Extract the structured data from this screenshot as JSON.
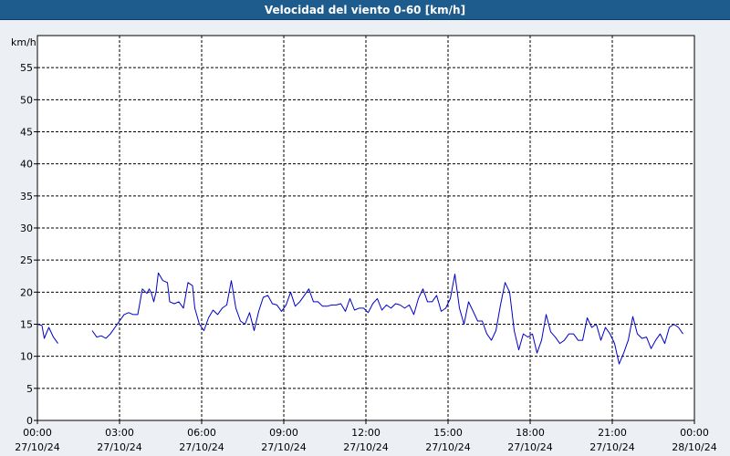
{
  "title": "Velocidad del viento 0-60 [km/h]",
  "colors": {
    "title_bg": "#1D5C8C",
    "plot_bg": "#FFFFFF",
    "page_bg": "#ECEFF3",
    "series": "#0000C8",
    "grid": "#000000"
  },
  "chart_data": {
    "type": "line",
    "title": "Velocidad del viento 0-60 [km/h]",
    "ylabel": "km/h",
    "xlabel": "",
    "ylim": [
      0,
      60
    ],
    "yticks": [
      0,
      5,
      10,
      15,
      20,
      25,
      30,
      35,
      40,
      45,
      50,
      55
    ],
    "xlim": [
      "00:00",
      "24:00"
    ],
    "xticks": [
      {
        "time": "00:00",
        "date": "27/10/24"
      },
      {
        "time": "03:00",
        "date": "27/10/24"
      },
      {
        "time": "06:00",
        "date": "27/10/24"
      },
      {
        "time": "09:00",
        "date": "27/10/24"
      },
      {
        "time": "12:00",
        "date": "27/10/24"
      },
      {
        "time": "15:00",
        "date": "27/10/24"
      },
      {
        "time": "18:00",
        "date": "27/10/24"
      },
      {
        "time": "21:00",
        "date": "27/10/24"
      },
      {
        "time": "00:00",
        "date": "28/10/24"
      }
    ],
    "grid": true,
    "series": [
      {
        "segments": [
          [
            [
              "00:00",
              15.0
            ],
            [
              "00:10",
              14.8
            ],
            [
              "00:15",
              12.8
            ],
            [
              "00:25",
              14.5
            ],
            [
              "00:35",
              13.0
            ],
            [
              "00:45",
              12.0
            ]
          ],
          [
            [
              "02:00",
              14.0
            ],
            [
              "02:10",
              13.0
            ],
            [
              "02:20",
              13.2
            ],
            [
              "02:30",
              12.8
            ],
            [
              "02:40",
              13.5
            ],
            [
              "02:50",
              14.5
            ],
            [
              "03:00",
              15.5
            ],
            [
              "03:10",
              16.5
            ],
            [
              "03:20",
              16.8
            ],
            [
              "03:30",
              16.5
            ],
            [
              "03:40",
              16.5
            ],
            [
              "03:45",
              18.5
            ],
            [
              "03:50",
              20.5
            ],
            [
              "04:00",
              19.8
            ],
            [
              "04:05",
              20.5
            ],
            [
              "04:10",
              19.8
            ],
            [
              "04:15",
              18.5
            ],
            [
              "04:20",
              20.0
            ],
            [
              "04:25",
              23.0
            ],
            [
              "04:35",
              21.8
            ],
            [
              "04:45",
              21.5
            ],
            [
              "04:50",
              18.5
            ],
            [
              "05:00",
              18.2
            ],
            [
              "05:10",
              18.5
            ],
            [
              "05:20",
              17.5
            ],
            [
              "05:30",
              21.5
            ],
            [
              "05:40",
              21.0
            ],
            [
              "05:45",
              17.5
            ],
            [
              "05:55",
              15.0
            ],
            [
              "06:05",
              14.0
            ],
            [
              "06:15",
              16.0
            ],
            [
              "06:25",
              17.2
            ],
            [
              "06:35",
              16.5
            ],
            [
              "06:45",
              17.5
            ],
            [
              "06:55",
              18.0
            ],
            [
              "07:05",
              21.8
            ],
            [
              "07:15",
              17.5
            ],
            [
              "07:25",
              15.5
            ],
            [
              "07:35",
              15.0
            ],
            [
              "07:45",
              16.8
            ],
            [
              "07:55",
              14.0
            ],
            [
              "08:05",
              17.0
            ],
            [
              "08:15",
              19.2
            ],
            [
              "08:25",
              19.5
            ],
            [
              "08:35",
              18.2
            ],
            [
              "08:45",
              18.0
            ],
            [
              "08:55",
              17.0
            ],
            [
              "09:05",
              18.0
            ],
            [
              "09:15",
              20.0
            ],
            [
              "09:25",
              17.8
            ],
            [
              "09:35",
              18.5
            ],
            [
              "09:45",
              19.5
            ],
            [
              "09:55",
              20.5
            ],
            [
              "10:05",
              18.5
            ],
            [
              "10:15",
              18.5
            ],
            [
              "10:25",
              17.8
            ],
            [
              "10:35",
              17.8
            ],
            [
              "10:45",
              18.0
            ],
            [
              "10:55",
              18.0
            ],
            [
              "11:05",
              18.2
            ],
            [
              "11:15",
              17.0
            ],
            [
              "11:25",
              19.0
            ],
            [
              "11:35",
              17.2
            ],
            [
              "11:45",
              17.5
            ],
            [
              "11:55",
              17.5
            ],
            [
              "12:05",
              16.8
            ],
            [
              "12:15",
              18.2
            ],
            [
              "12:25",
              19.0
            ],
            [
              "12:35",
              17.2
            ],
            [
              "12:45",
              18.0
            ],
            [
              "12:55",
              17.5
            ],
            [
              "13:05",
              18.2
            ],
            [
              "13:15",
              18.0
            ],
            [
              "13:25",
              17.5
            ],
            [
              "13:35",
              18.0
            ],
            [
              "13:45",
              16.5
            ],
            [
              "13:55",
              19.0
            ],
            [
              "14:05",
              20.5
            ],
            [
              "14:15",
              18.5
            ],
            [
              "14:25",
              18.5
            ],
            [
              "14:35",
              19.5
            ],
            [
              "14:45",
              17.0
            ],
            [
              "14:55",
              17.5
            ],
            [
              "15:05",
              19.0
            ],
            [
              "15:15",
              22.8
            ],
            [
              "15:25",
              17.5
            ],
            [
              "15:35",
              15.0
            ],
            [
              "15:45",
              18.5
            ],
            [
              "15:55",
              17.0
            ],
            [
              "16:05",
              15.5
            ],
            [
              "16:15",
              15.5
            ],
            [
              "16:25",
              13.5
            ],
            [
              "16:35",
              12.5
            ],
            [
              "16:45",
              14.0
            ],
            [
              "16:55",
              18.0
            ],
            [
              "17:05",
              21.5
            ],
            [
              "17:15",
              20.0
            ],
            [
              "17:25",
              14.0
            ],
            [
              "17:35",
              11.0
            ],
            [
              "17:45",
              13.5
            ],
            [
              "17:55",
              13.0
            ],
            [
              "18:05",
              13.5
            ],
            [
              "18:15",
              10.5
            ],
            [
              "18:25",
              12.5
            ],
            [
              "18:35",
              16.5
            ],
            [
              "18:45",
              13.8
            ],
            [
              "18:55",
              13.0
            ],
            [
              "19:05",
              12.0
            ],
            [
              "19:15",
              12.5
            ],
            [
              "19:25",
              13.5
            ],
            [
              "19:35",
              13.5
            ],
            [
              "19:45",
              12.5
            ],
            [
              "19:55",
              12.5
            ],
            [
              "20:05",
              16.0
            ],
            [
              "20:15",
              14.5
            ],
            [
              "20:25",
              15.0
            ],
            [
              "20:35",
              12.5
            ],
            [
              "20:45",
              14.5
            ],
            [
              "20:55",
              13.5
            ],
            [
              "21:05",
              12.0
            ],
            [
              "21:15",
              8.8
            ],
            [
              "21:25",
              10.5
            ],
            [
              "21:35",
              12.5
            ],
            [
              "21:45",
              16.2
            ],
            [
              "21:55",
              13.5
            ],
            [
              "22:05",
              12.8
            ],
            [
              "22:15",
              13.0
            ],
            [
              "22:25",
              11.2
            ],
            [
              "22:35",
              12.5
            ],
            [
              "22:45",
              13.5
            ],
            [
              "22:55",
              12.0
            ],
            [
              "23:05",
              14.5
            ],
            [
              "23:15",
              15.0
            ],
            [
              "23:25",
              14.5
            ],
            [
              "23:35",
              13.5
            ]
          ]
        ]
      }
    ]
  }
}
